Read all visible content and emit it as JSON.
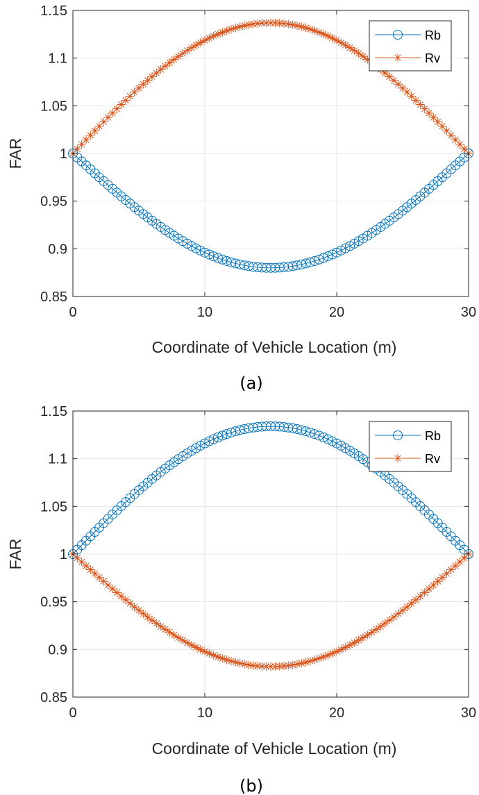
{
  "figure": {
    "colors": {
      "rb": "#0072BD",
      "rv": "#D95319",
      "grid": "#e6e6e6",
      "axis": "#262626"
    }
  },
  "chart_data": [
    {
      "type": "line",
      "caption": "(a)",
      "xlabel": "Coordinate of Vehicle Location (m)",
      "ylabel": "FAR",
      "xlim": [
        0,
        30
      ],
      "ylim": [
        0.85,
        1.15
      ],
      "xticks": [
        0,
        10,
        20,
        30
      ],
      "yticks": [
        0.85,
        0.9,
        0.95,
        1,
        1.05,
        1.1,
        1.15
      ],
      "xtick_labels": [
        "0",
        "10",
        "20",
        "30"
      ],
      "ytick_labels": [
        "0.85",
        "0.9",
        "0.95",
        "1",
        "1.05",
        "1.1",
        "1.15"
      ],
      "grid": true,
      "legend_position": "top-right",
      "n_points": 91,
      "series": [
        {
          "name": "Rb",
          "marker": "circle",
          "color": "#0072BD",
          "start": 1.0,
          "extreme": 0.88,
          "end": 1.0,
          "shape": "sine"
        },
        {
          "name": "Rv",
          "marker": "asterisk",
          "color": "#D95319",
          "start": 1.0,
          "extreme": 1.137,
          "end": 1.0,
          "shape": "sine"
        }
      ]
    },
    {
      "type": "line",
      "caption": "(b)",
      "xlabel": "Coordinate of Vehicle Location (m)",
      "ylabel": "FAR",
      "xlim": [
        0,
        30
      ],
      "ylim": [
        0.85,
        1.15
      ],
      "xticks": [
        0,
        10,
        20,
        30
      ],
      "yticks": [
        0.85,
        0.9,
        0.95,
        1,
        1.05,
        1.1,
        1.15
      ],
      "xtick_labels": [
        "0",
        "10",
        "20",
        "30"
      ],
      "ytick_labels": [
        "0.85",
        "0.9",
        "0.95",
        "1",
        "1.05",
        "1.1",
        "1.15"
      ],
      "grid": true,
      "legend_position": "top-right",
      "n_points": 91,
      "series": [
        {
          "name": "Rb",
          "marker": "circle",
          "color": "#0072BD",
          "start": 1.0,
          "extreme": 1.134,
          "end": 1.0,
          "shape": "sine"
        },
        {
          "name": "Rv",
          "marker": "asterisk",
          "color": "#D95319",
          "start": 1.0,
          "extreme": 0.882,
          "end": 1.0,
          "shape": "sine"
        }
      ]
    }
  ]
}
